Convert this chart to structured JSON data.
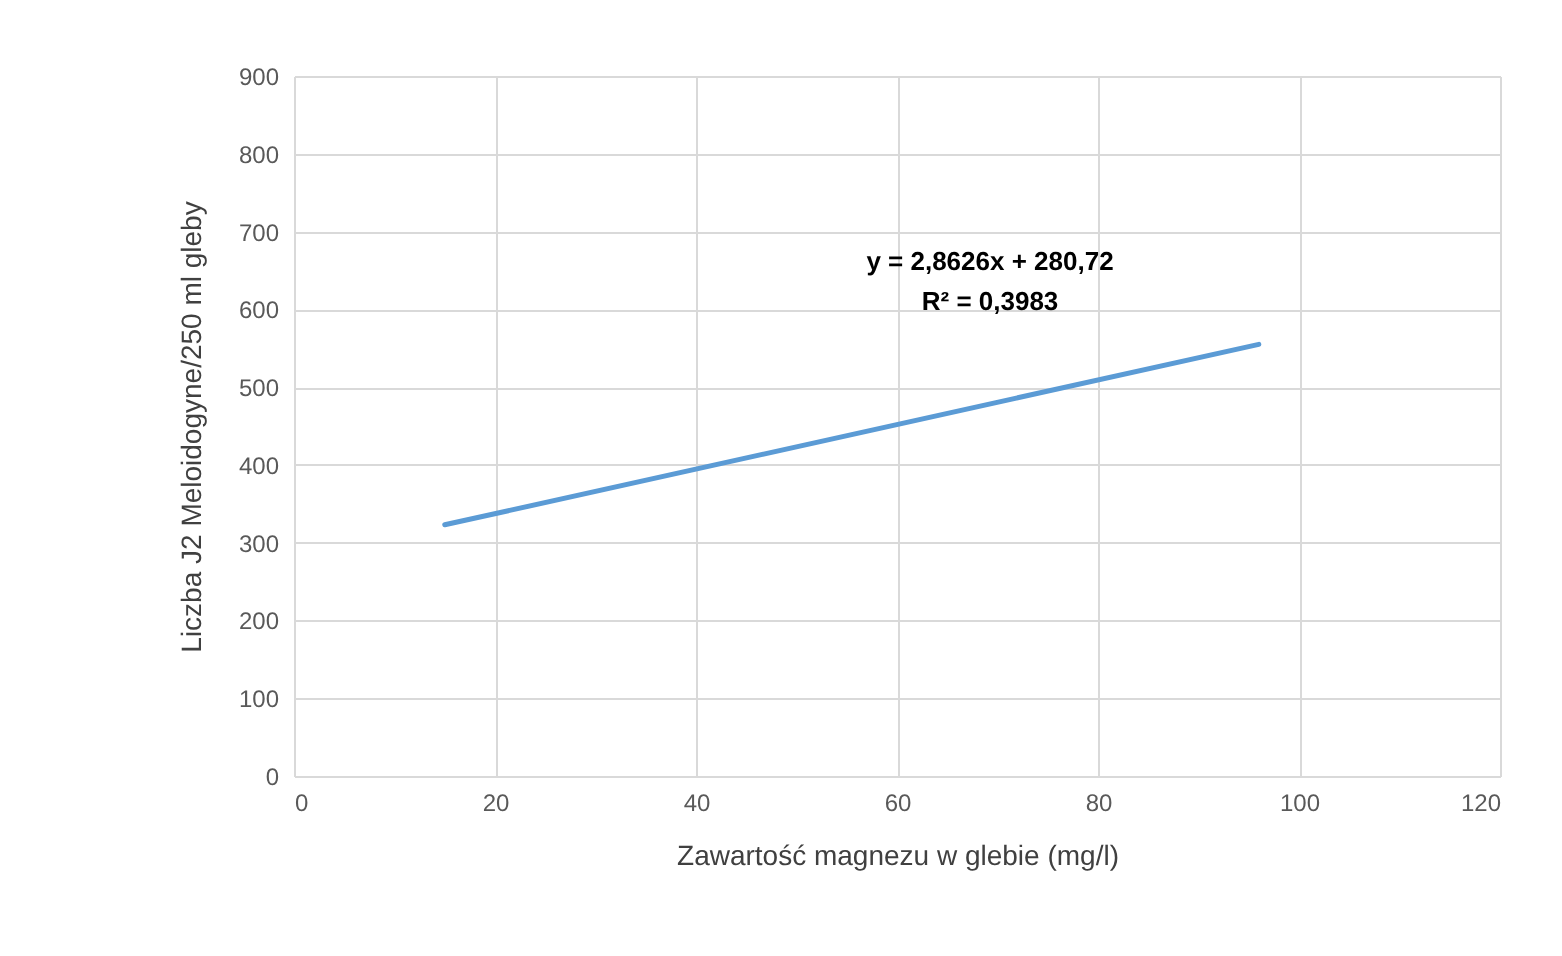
{
  "chart_data": {
    "type": "line",
    "xlabel": "Zawartość magnezu w glebie (mg/l)",
    "ylabel": "Liczba J2 Meloidogyne/250 ml gleby",
    "series": [
      {
        "color": "#5b9bd5",
        "x": [
          15,
          96
        ],
        "values": [
          323,
          555
        ]
      }
    ],
    "xlim": [
      0,
      120
    ],
    "xticks": [
      0,
      20,
      40,
      60,
      80,
      100,
      120
    ],
    "ylim": [
      0,
      900
    ],
    "yticks": [
      0,
      100,
      200,
      300,
      400,
      500,
      600,
      700,
      800,
      900
    ],
    "grid": true,
    "annotations": [
      "y = 2,8626x + 280,72",
      "R² = 0,3983"
    ]
  }
}
